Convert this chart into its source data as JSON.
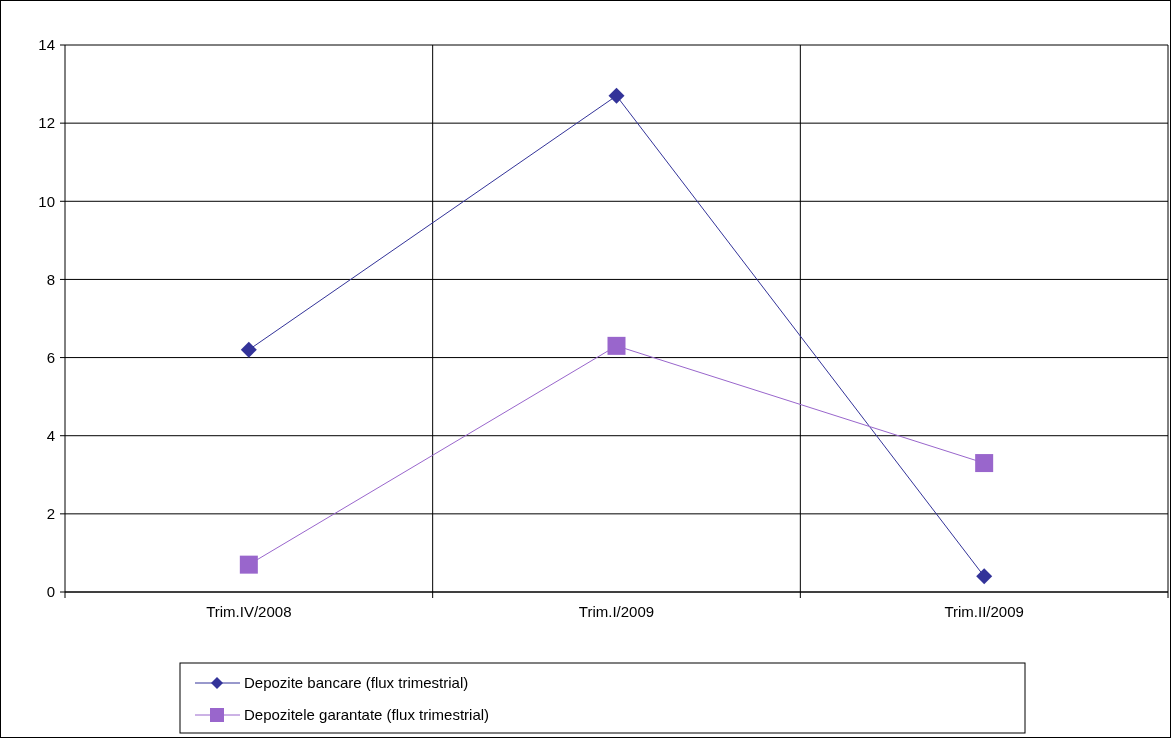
{
  "chart_data": {
    "type": "line",
    "categories": [
      "Trim.IV/2008",
      "Trim.I/2009",
      "Trim.II/2009"
    ],
    "series": [
      {
        "name": "Depozite bancare (flux trimestrial)",
        "color": "#333399",
        "marker": "diamond",
        "values": [
          6.2,
          12.7,
          0.4
        ]
      },
      {
        "name": "Depozitele garantate (flux trimestrial)",
        "color": "#9966cc",
        "marker": "square",
        "values": [
          0.7,
          6.3,
          3.3
        ]
      }
    ],
    "ylim": [
      0,
      14
    ],
    "yticks": [
      0,
      2,
      4,
      6,
      8,
      10,
      12,
      14
    ],
    "grid": true,
    "legend": "bottom"
  }
}
